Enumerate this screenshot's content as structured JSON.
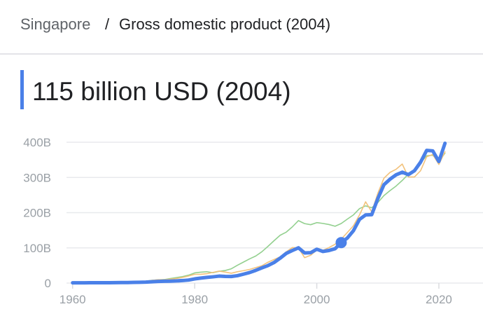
{
  "breadcrumb": {
    "parent": "Singapore",
    "separator": "/",
    "current": "Gross domestic product (2004)"
  },
  "headline": "115 billion USD (2004)",
  "chart_data": {
    "type": "line",
    "x": [
      1960,
      1961,
      1962,
      1963,
      1964,
      1965,
      1966,
      1967,
      1968,
      1969,
      1970,
      1971,
      1972,
      1973,
      1974,
      1975,
      1976,
      1977,
      1978,
      1979,
      1980,
      1981,
      1982,
      1983,
      1984,
      1985,
      1986,
      1987,
      1988,
      1989,
      1990,
      1991,
      1992,
      1993,
      1994,
      1995,
      1996,
      1997,
      1998,
      1999,
      2000,
      2001,
      2002,
      2003,
      2004,
      2005,
      2006,
      2007,
      2008,
      2009,
      2010,
      2011,
      2012,
      2013,
      2014,
      2015,
      2016,
      2017,
      2018,
      2019,
      2020,
      2021
    ],
    "series": [
      {
        "color": "#4a80e8",
        "values": [
          0.7,
          0.76,
          0.83,
          0.92,
          0.89,
          0.97,
          1.1,
          1.2,
          1.4,
          1.6,
          1.9,
          2.3,
          2.7,
          3.7,
          4.8,
          5.3,
          5.6,
          6.1,
          7.1,
          8.6,
          11.9,
          14.2,
          16.1,
          17.8,
          19.8,
          19.0,
          18.7,
          21.0,
          25.4,
          30.0,
          36.1,
          43.1,
          49.7,
          58.4,
          70.7,
          84.3,
          92.5,
          100.1,
          85.7,
          86.3,
          96.1,
          89.8,
          92.5,
          97.6,
          115,
          127.8,
          148.6,
          180.9,
          193.6,
          194.2,
          239.8,
          279.4,
          295.1,
          307.6,
          314.9,
          308.0,
          319.0,
          343.3,
          376.9,
          375.5,
          345.3,
          397.0
        ]
      },
      {
        "color": "#f2c27c",
        "values": [
          1.9,
          2.0,
          2.1,
          2.3,
          2.5,
          2.7,
          2.9,
          3.0,
          3.1,
          3.3,
          3.9,
          4.2,
          5.0,
          7.7,
          9.6,
          9.3,
          11.1,
          13.1,
          16.0,
          20.2,
          24.9,
          25.0,
          26.8,
          30.3,
          33.9,
          31.2,
          28.0,
          32.2,
          35.3,
          38.8,
          44.0,
          49.1,
          59.2,
          66.9,
          74.5,
          88.7,
          100.9,
          100.0,
          72.2,
          79.1,
          93.8,
          92.8,
          100.8,
          110.2,
          124.7,
          143.5,
          162.7,
          193.5,
          230.8,
          202.3,
          255.0,
          297.9,
          314.4,
          323.3,
          338.1,
          301.4,
          301.3,
          319.1,
          358.8,
          365.2,
          337.0,
          373.0
        ]
      },
      {
        "color": "#93d08f",
        "values": [
          1.3,
          1.4,
          1.6,
          1.9,
          2.1,
          2.4,
          2.5,
          2.7,
          2.7,
          3.1,
          3.8,
          4.5,
          5.7,
          7.9,
          9.2,
          10.0,
          12.9,
          15.7,
          18.3,
          22.5,
          28.9,
          31.0,
          32.3,
          29.4,
          33.5,
          35.7,
          40.6,
          50.6,
          59.7,
          68.8,
          76.9,
          88.9,
          104.3,
          120.4,
          135.8,
          144.7,
          159.7,
          177.4,
          168.9,
          165.8,
          171.7,
          169.4,
          166.3,
          161.4,
          169.1,
          181.6,
          193.5,
          211.6,
          219.3,
          214.0,
          228.6,
          248.5,
          262.6,
          275.7,
          291.5,
          309.4,
          320.9,
          341.3,
          361.7,
          363.1,
          344.9,
          368.9
        ]
      }
    ],
    "highlight_index": 44,
    "xlim": [
      1959,
      2027
    ],
    "xticks": [
      1960,
      1980,
      2000,
      2020
    ],
    "ylim": [
      0,
      400
    ],
    "yticks": [
      0,
      {
        "value": 100,
        "label": "100B"
      },
      {
        "value": 200,
        "label": "200B"
      },
      {
        "value": 300,
        "label": "300B"
      },
      {
        "value": 400,
        "label": "400B"
      }
    ],
    "grid": true
  }
}
